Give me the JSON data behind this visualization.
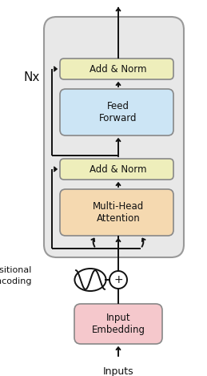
{
  "fig_width": 2.59,
  "fig_height": 4.69,
  "dpi": 100,
  "bg_color": "#ffffff",
  "enc_box_color": "#e8e8e8",
  "enc_box_edge": "#999999",
  "add_norm_color": "#eeeebb",
  "feed_forward_color": "#cce5f5",
  "attention_color": "#f5d9b0",
  "embedding_color": "#f5c8cc",
  "box_edge": "#888888",
  "text_color": "#111111",
  "arrow_color": "#111111",
  "nx_label": "Nx",
  "pos_enc_label": "Positional\nEncoding",
  "inputs_label": "Inputs",
  "add_norm_top_label": "Add & Norm",
  "feed_forward_label": "Feed\nForward",
  "add_norm_bot_label": "Add & Norm",
  "attention_label": "Multi-Head\nAttention",
  "embedding_label": "Input\nEmbedding"
}
